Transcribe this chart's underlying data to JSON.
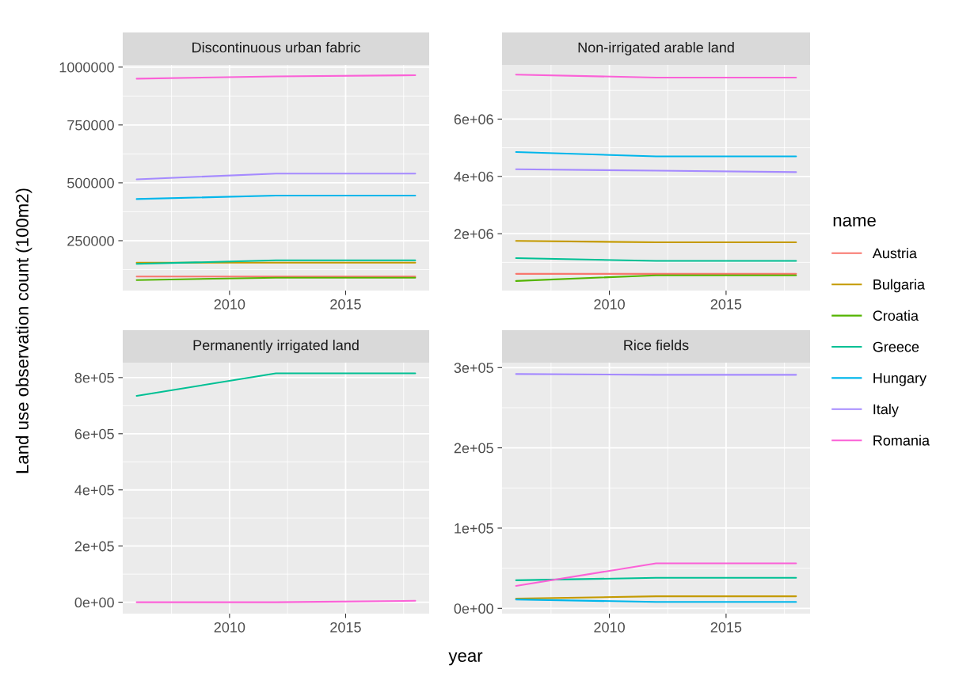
{
  "chart_data": [
    {
      "type": "line",
      "title": "Discontinuous urban fabric",
      "ylabel": "Land use observation count (100m2)",
      "legend": "right",
      "legend_title": "name",
      "grid": true,
      "x": [
        2006,
        2012,
        2018
      ],
      "xlim": [
        2005.4,
        2018.6
      ],
      "xticks": [
        2010,
        2015
      ],
      "ylim": [
        34400,
        1009400
      ],
      "yticks": [
        250000,
        500000,
        750000,
        1000000
      ],
      "series": [
        {
          "name": "Austria",
          "color": "#f8766d",
          "values": [
            95000,
            95000,
            95000
          ]
        },
        {
          "name": "Bulgaria",
          "color": "#c49a00",
          "values": [
            155000,
            155000,
            155000
          ]
        },
        {
          "name": "Croatia",
          "color": "#53b400",
          "values": [
            80000,
            90000,
            90000
          ]
        },
        {
          "name": "Greece",
          "color": "#00c094",
          "values": [
            150000,
            165000,
            165000
          ]
        },
        {
          "name": "Hungary",
          "color": "#00b6eb",
          "values": [
            430000,
            445000,
            445000
          ]
        },
        {
          "name": "Italy",
          "color": "#a58aff",
          "values": [
            515000,
            540000,
            540000
          ]
        },
        {
          "name": "Romania",
          "color": "#fb61d7",
          "values": [
            950000,
            960000,
            965000
          ]
        }
      ]
    },
    {
      "type": "line",
      "title": "Non-irrigated arable land",
      "grid": true,
      "x": [
        2006,
        2012,
        2018
      ],
      "xlim": [
        2005.4,
        2018.6
      ],
      "xticks": [
        2010,
        2015
      ],
      "ylim": [
        16000,
        7890000
      ],
      "yticks": [
        {
          "value": 2000000,
          "label": "2e+06"
        },
        {
          "value": 4000000,
          "label": "4e+06"
        },
        {
          "value": 6000000,
          "label": "6e+06"
        }
      ],
      "series": [
        {
          "color": "#f8766d",
          "values": [
            600000,
            600000,
            600000
          ]
        },
        {
          "color": "#c49a00",
          "values": [
            1750000,
            1700000,
            1700000
          ]
        },
        {
          "color": "#53b400",
          "values": [
            350000,
            550000,
            550000
          ]
        },
        {
          "color": "#00c094",
          "values": [
            1150000,
            1050000,
            1050000
          ]
        },
        {
          "color": "#00b6eb",
          "values": [
            4850000,
            4700000,
            4700000
          ]
        },
        {
          "color": "#a58aff",
          "values": [
            4250000,
            4200000,
            4150000
          ]
        },
        {
          "color": "#fb61d7",
          "values": [
            7550000,
            7450000,
            7450000
          ]
        }
      ]
    },
    {
      "type": "line",
      "title": "Permanently irrigated land",
      "xlabel": "year",
      "grid": true,
      "x": [
        2006,
        2012,
        2018
      ],
      "xlim": [
        2005.4,
        2018.6
      ],
      "xticks": [
        2010,
        2015
      ],
      "ylim": [
        -40600,
        853200
      ],
      "yticks": [
        {
          "value": 0,
          "label": "0e+00"
        },
        {
          "value": 200000,
          "label": "2e+05"
        },
        {
          "value": 400000,
          "label": "4e+05"
        },
        {
          "value": 600000,
          "label": "6e+05"
        },
        {
          "value": 800000,
          "label": "8e+05"
        }
      ],
      "series": [
        {
          "color": "#00c094",
          "values": [
            735000,
            815000,
            815000
          ]
        },
        {
          "color": "#fb61d7",
          "values": [
            0,
            0,
            5000
          ]
        }
      ]
    },
    {
      "type": "line",
      "title": "Rice fields",
      "grid": true,
      "x": [
        2006,
        2012,
        2018
      ],
      "xlim": [
        2005.4,
        2018.6
      ],
      "xticks": [
        2010,
        2015
      ],
      "ylim": [
        -6600,
        306200
      ],
      "yticks": [
        {
          "value": 0,
          "label": "0e+00"
        },
        {
          "value": 100000,
          "label": "1e+05"
        },
        {
          "value": 200000,
          "label": "2e+05"
        },
        {
          "value": 300000,
          "label": "3e+05"
        }
      ],
      "series": [
        {
          "color": "#c49a00",
          "values": [
            12000,
            15000,
            15000
          ]
        },
        {
          "color": "#00c094",
          "values": [
            35000,
            38000,
            38000
          ]
        },
        {
          "color": "#00b6eb",
          "values": [
            11000,
            8000,
            8000
          ]
        },
        {
          "color": "#a58aff",
          "values": [
            292000,
            291000,
            291000
          ]
        },
        {
          "color": "#fb61d7",
          "values": [
            28000,
            56000,
            56000
          ]
        }
      ]
    }
  ]
}
